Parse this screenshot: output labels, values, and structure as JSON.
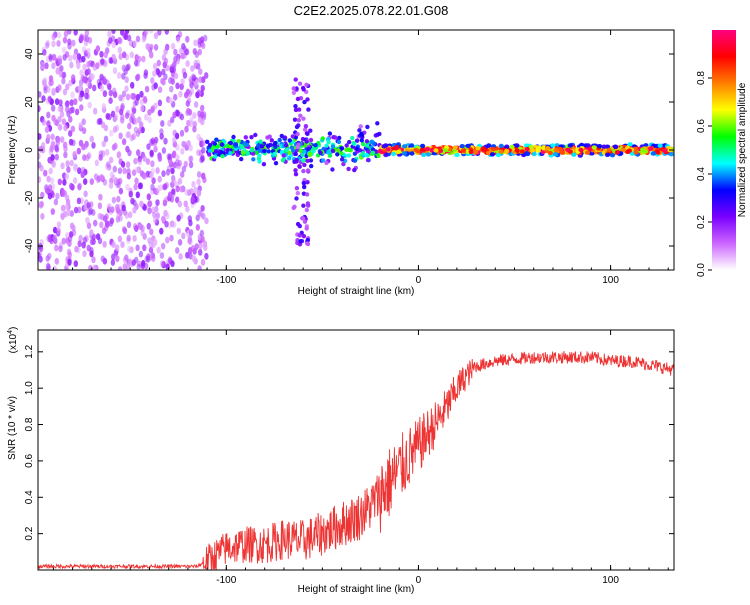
{
  "title": "C2E2.2025.078.22.01.G08",
  "chart_data": [
    {
      "type": "heatmap",
      "name": "spectrogram",
      "xlabel": "Height of straight line (km)",
      "ylabel": "Frequency (Hz)",
      "xlim": [
        -198,
        133
      ],
      "ylim": [
        -50,
        50
      ],
      "xticks": [
        -100,
        0,
        100
      ],
      "yticks": [
        -40,
        -20,
        0,
        20,
        40
      ],
      "colorbar": {
        "label": "Normalized spectral amplitude",
        "range": [
          0,
          1
        ],
        "ticks": [
          0.0,
          0.2,
          0.4,
          0.6,
          0.8
        ],
        "colors": [
          "#ffffff",
          "#cc66ff",
          "#7a00ff",
          "#0000ff",
          "#00ffff",
          "#00ff00",
          "#ffff00",
          "#ff7f00",
          "#ff0000",
          "#ff0080"
        ]
      },
      "regions": [
        {
          "x": [
            -198,
            -110
          ],
          "freq": [
            -50,
            50
          ],
          "description": "scattered low-amplitude noise",
          "amplitude": [
            0.05,
            0.2
          ]
        },
        {
          "x": [
            -110,
            -20
          ],
          "freq": [
            -10,
            8
          ],
          "description": "broadened signal band",
          "amplitude": [
            0.2,
            0.6
          ]
        },
        {
          "x": [
            -65,
            -57
          ],
          "freq": [
            -40,
            30
          ],
          "description": "vertical spike",
          "amplitude": [
            0.1,
            0.3
          ]
        },
        {
          "x": [
            -20,
            133
          ],
          "freq": [
            -3,
            3
          ],
          "description": "narrow signal line near 0 Hz",
          "amplitude": [
            0.6,
            1.0
          ]
        }
      ]
    },
    {
      "type": "line",
      "name": "snr",
      "xlabel": "Height of straight line (km)",
      "ylabel": "SNR (10 * v/v)",
      "yscale_label": "(x10",
      "yscale_exp": "4",
      "xlim": [
        -198,
        133
      ],
      "ylim": [
        0,
        1.32
      ],
      "xticks": [
        -100,
        0,
        100
      ],
      "yticks": [
        0.2,
        0.4,
        0.6,
        0.8,
        1.0,
        1.2
      ],
      "color": "#ee3333",
      "x": [
        -198,
        -150,
        -115,
        -110,
        -100,
        -90,
        -80,
        -70,
        -60,
        -50,
        -40,
        -30,
        -25,
        -20,
        -15,
        -10,
        -5,
        0,
        5,
        10,
        15,
        20,
        25,
        30,
        40,
        50,
        60,
        70,
        80,
        90,
        100,
        110,
        120,
        133
      ],
      "y": [
        0.02,
        0.02,
        0.02,
        0.05,
        0.12,
        0.14,
        0.14,
        0.17,
        0.16,
        0.2,
        0.25,
        0.3,
        0.35,
        0.42,
        0.48,
        0.55,
        0.62,
        0.68,
        0.75,
        0.82,
        0.9,
        1.0,
        1.07,
        1.12,
        1.15,
        1.16,
        1.17,
        1.17,
        1.17,
        1.17,
        1.15,
        1.15,
        1.13,
        1.1
      ]
    }
  ]
}
